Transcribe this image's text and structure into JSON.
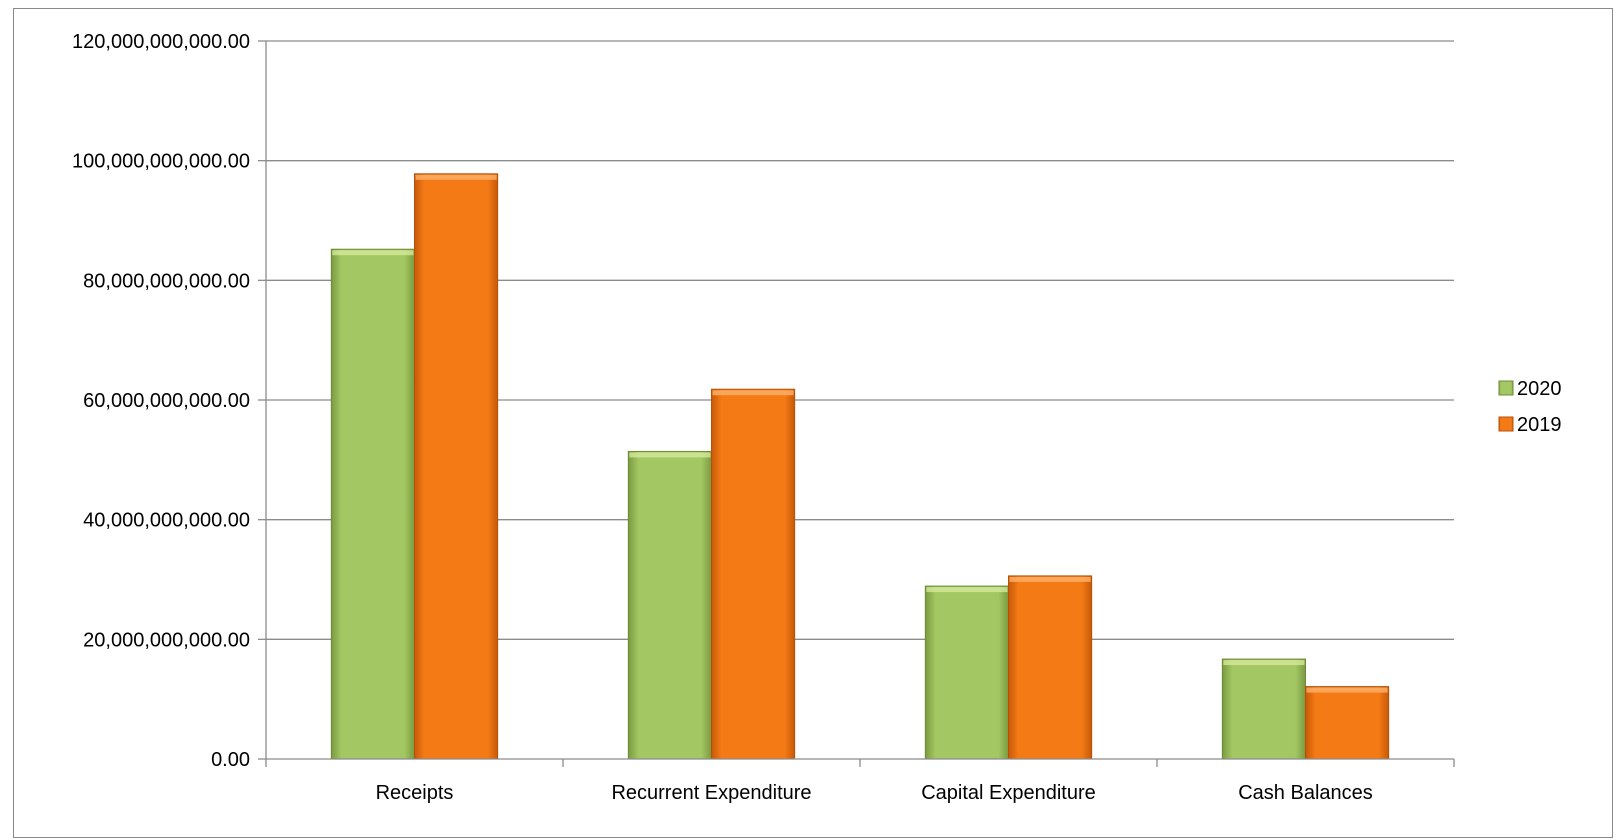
{
  "chart_data": {
    "type": "bar",
    "title": "",
    "xlabel": "",
    "ylabel": "",
    "categories": [
      "Receipts",
      "Recurrent Expenditure",
      "Capital Expenditure",
      "Cash Balances"
    ],
    "series": [
      {
        "name": "2020",
        "values": [
          85200000000,
          51400000000,
          28900000000,
          16700000000
        ],
        "color": "#9bc05a"
      },
      {
        "name": "2019",
        "values": [
          97800000000,
          61800000000,
          30600000000,
          12100000000
        ],
        "color": "#f07515"
      }
    ],
    "ylim": [
      0,
      120000000000
    ],
    "yticks": [
      0,
      20000000000,
      40000000000,
      60000000000,
      80000000000,
      100000000000,
      120000000000
    ],
    "ytick_labels": [
      "0.00",
      "20,000,000,000.00",
      "40,000,000,000.00",
      "60,000,000,000.00",
      "80,000,000,000.00",
      "100,000,000,000.00",
      "120,000,000,000.00"
    ],
    "grid": true,
    "legend_position": "right"
  }
}
